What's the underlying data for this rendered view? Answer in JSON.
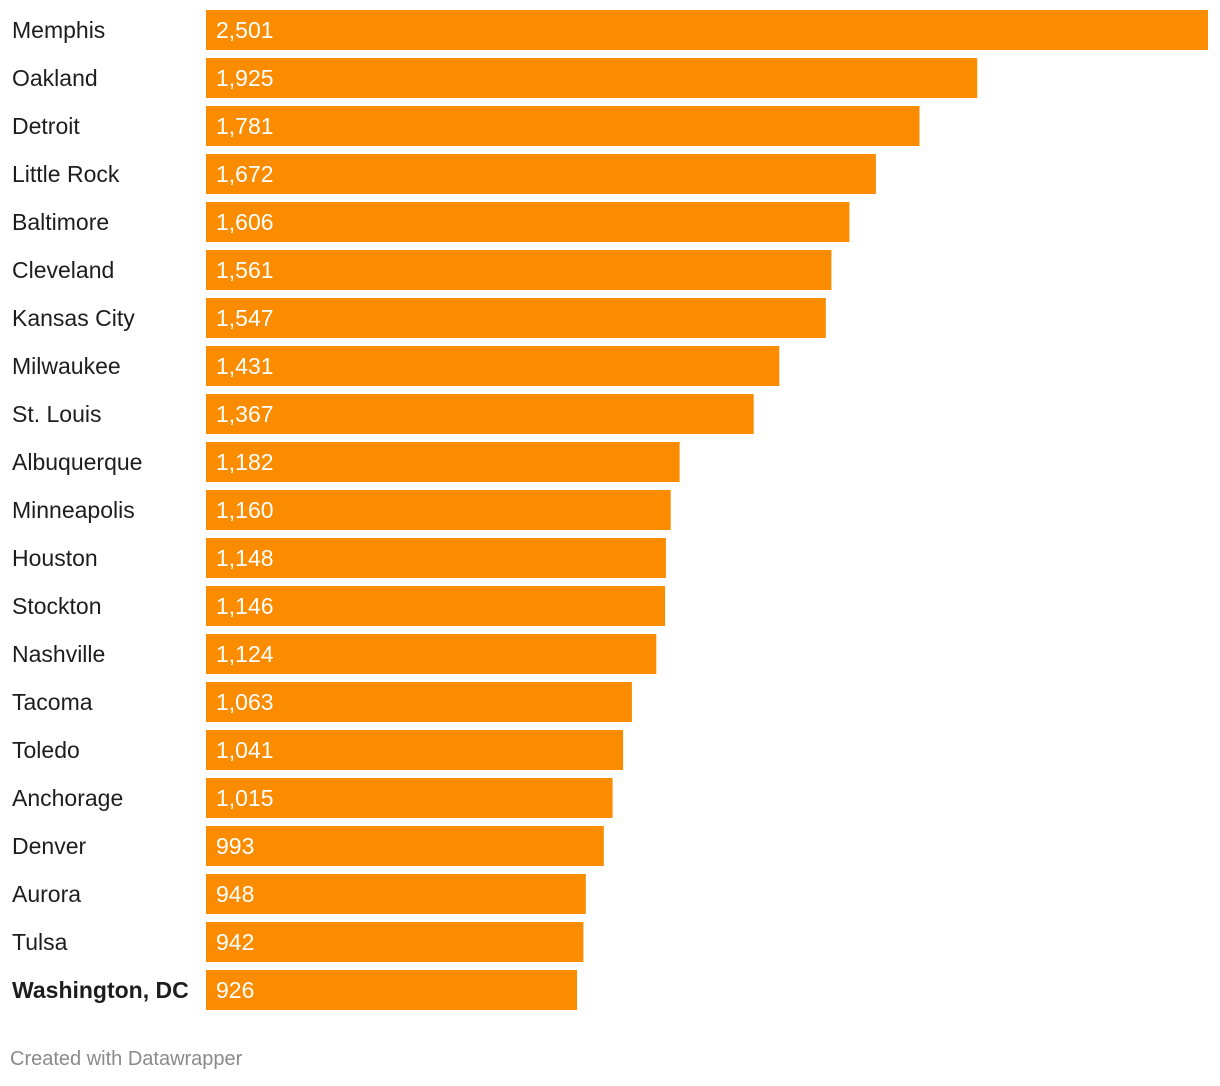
{
  "chart_data": {
    "type": "bar",
    "orientation": "horizontal",
    "categories": [
      "Memphis",
      "Oakland",
      "Detroit",
      "Little Rock",
      "Baltimore",
      "Cleveland",
      "Kansas City",
      "Milwaukee",
      "St. Louis",
      "Albuquerque",
      "Minneapolis",
      "Houston",
      "Stockton",
      "Nashville",
      "Tacoma",
      "Toledo",
      "Anchorage",
      "Denver",
      "Aurora",
      "Tulsa",
      "Washington, DC"
    ],
    "values": [
      2501,
      1925,
      1781,
      1672,
      1606,
      1561,
      1547,
      1431,
      1367,
      1182,
      1160,
      1148,
      1146,
      1124,
      1063,
      1041,
      1015,
      993,
      948,
      942,
      926
    ],
    "value_labels": [
      "2,501",
      "1,925",
      "1,781",
      "1,672",
      "1,606",
      "1,561",
      "1,547",
      "1,431",
      "1,367",
      "1,182",
      "1,160",
      "1,148",
      "1,146",
      "1,124",
      "1,063",
      "1,041",
      "1,015",
      "993",
      "948",
      "942",
      "926"
    ],
    "highlighted": [
      "Washington, DC"
    ],
    "bar_color": "#fb8c00",
    "xlim": [
      0,
      2501
    ],
    "title": "",
    "xlabel": "",
    "ylabel": ""
  },
  "footer": {
    "credit": "Created with Datawrapper"
  }
}
